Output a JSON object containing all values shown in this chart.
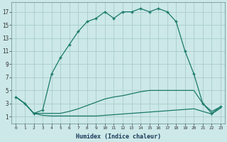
{
  "xlabel": "Humidex (Indice chaleur)",
  "bg_color": "#cce8e8",
  "grid_color": "#aacccc",
  "line_color": "#1a7a6a",
  "xlim": [
    -0.5,
    23.5
  ],
  "ylim": [
    0,
    18.5
  ],
  "x_ticks": [
    0,
    1,
    2,
    3,
    4,
    5,
    6,
    7,
    8,
    9,
    10,
    11,
    12,
    13,
    14,
    15,
    16,
    17,
    18,
    19,
    20,
    21,
    22,
    23
  ],
  "y_ticks": [
    1,
    3,
    5,
    7,
    9,
    11,
    13,
    15,
    17
  ],
  "series3_x": [
    0,
    1,
    2,
    3,
    4,
    5,
    6,
    7,
    8,
    9,
    10,
    11,
    12,
    13,
    14,
    15,
    16,
    17,
    18,
    19,
    20,
    21,
    22,
    23
  ],
  "series3_y": [
    4,
    3,
    1.5,
    2,
    7.5,
    10,
    12,
    14,
    15.5,
    16,
    17,
    16,
    17,
    17,
    17.5,
    17,
    17.5,
    17,
    15.5,
    11,
    7.5,
    3,
    1.5,
    2.5
  ],
  "series2_x": [
    0,
    1,
    2,
    3,
    4,
    5,
    6,
    7,
    8,
    9,
    10,
    11,
    12,
    13,
    14,
    15,
    16,
    17,
    18,
    19,
    20,
    21,
    22,
    23
  ],
  "series2_y": [
    4,
    3,
    1.5,
    1.5,
    1.5,
    1.5,
    1.8,
    2.2,
    2.7,
    3.2,
    3.7,
    4.0,
    4.2,
    4.5,
    4.8,
    5.0,
    5.0,
    5.0,
    5.0,
    5.0,
    5.0,
    3.0,
    1.8,
    2.5
  ],
  "series1_x": [
    0,
    1,
    2,
    3,
    4,
    5,
    6,
    7,
    8,
    9,
    10,
    11,
    12,
    13,
    14,
    15,
    16,
    17,
    18,
    19,
    20,
    21,
    22,
    23
  ],
  "series1_y": [
    4,
    3,
    1.5,
    1.2,
    1.1,
    1.1,
    1.1,
    1.1,
    1.1,
    1.1,
    1.2,
    1.3,
    1.4,
    1.5,
    1.6,
    1.7,
    1.8,
    1.9,
    2.0,
    2.1,
    2.2,
    1.8,
    1.4,
    2.3
  ]
}
